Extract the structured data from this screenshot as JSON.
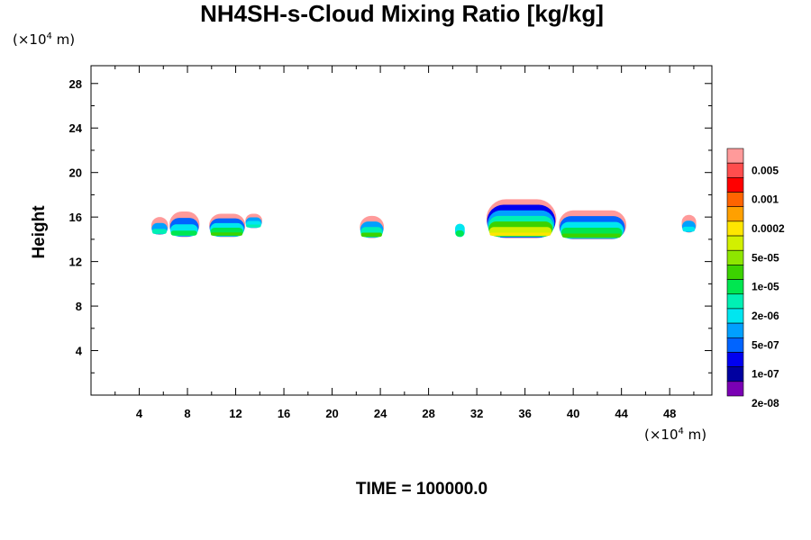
{
  "chart_data": {
    "type": "heatmap",
    "title": "NH4SH-s-Cloud Mixing Ratio [kg/kg]",
    "ylabel": "Height",
    "x_units_prefix": "(×10",
    "x_units_exp": "4",
    "x_units_suffix": " m)",
    "y_units_prefix": "(×10",
    "y_units_exp": "4",
    "y_units_suffix": " m)",
    "xlim": [
      0,
      51.5
    ],
    "ylim": [
      0,
      29.6
    ],
    "x_ticks": [
      4,
      8,
      12,
      16,
      20,
      24,
      28,
      32,
      36,
      40,
      44,
      48
    ],
    "y_ticks": [
      4,
      8,
      12,
      16,
      20,
      24,
      28
    ],
    "x_tick_labels": [
      "4",
      "8",
      "12",
      "16",
      "20",
      "24",
      "28",
      "32",
      "36",
      "40",
      "44",
      "48"
    ],
    "y_tick_labels": [
      "4",
      "8",
      "12",
      "16",
      "20",
      "24",
      "28"
    ],
    "colorbar": {
      "colors": [
        "#ff9a9a",
        "#ff4d4d",
        "#ff0000",
        "#ff6400",
        "#ffa000",
        "#ffe600",
        "#d2f000",
        "#8ee600",
        "#3cd200",
        "#00e650",
        "#00f0b4",
        "#00e6f0",
        "#00a0ff",
        "#0064ff",
        "#0000f0",
        "#0000a0",
        "#7a00b4"
      ],
      "labels": [
        "0.005",
        "0.001",
        "0.0002",
        "5e-05",
        "1e-05",
        "2e-06",
        "5e-07",
        "1e-07",
        "2e-08"
      ]
    },
    "cloud_patches": [
      {
        "x_start": 5.0,
        "x_end": 6.4,
        "bottom": 14.4,
        "top": 16.0,
        "levels": [
          0,
          12,
          10
        ]
      },
      {
        "x_start": 6.5,
        "x_end": 9.0,
        "bottom": 14.2,
        "top": 16.5,
        "levels": [
          0,
          13,
          11,
          9
        ]
      },
      {
        "x_start": 9.8,
        "x_end": 12.8,
        "bottom": 14.2,
        "top": 16.3,
        "levels": [
          0,
          13,
          11,
          9,
          8
        ]
      },
      {
        "x_start": 12.8,
        "x_end": 14.2,
        "bottom": 15.0,
        "top": 16.3,
        "levels": [
          0,
          12,
          11,
          10
        ]
      },
      {
        "x_start": 22.3,
        "x_end": 24.3,
        "bottom": 14.1,
        "top": 16.1,
        "levels": [
          0,
          12,
          10,
          8
        ]
      },
      {
        "x_start": 30.2,
        "x_end": 31.0,
        "bottom": 14.2,
        "top": 15.4,
        "levels": [
          11,
          9
        ]
      },
      {
        "x_start": 32.8,
        "x_end": 38.6,
        "bottom": 14.1,
        "top": 17.6,
        "levels": [
          0,
          14,
          12,
          10,
          8,
          6,
          5
        ]
      },
      {
        "x_start": 38.8,
        "x_end": 44.4,
        "bottom": 14.0,
        "top": 16.6,
        "levels": [
          0,
          13,
          11,
          9,
          8
        ]
      },
      {
        "x_start": 49.0,
        "x_end": 50.2,
        "bottom": 14.6,
        "top": 16.2,
        "levels": [
          0,
          12,
          11
        ]
      }
    ]
  },
  "footer": {
    "time_label": "TIME = 100000.0"
  }
}
